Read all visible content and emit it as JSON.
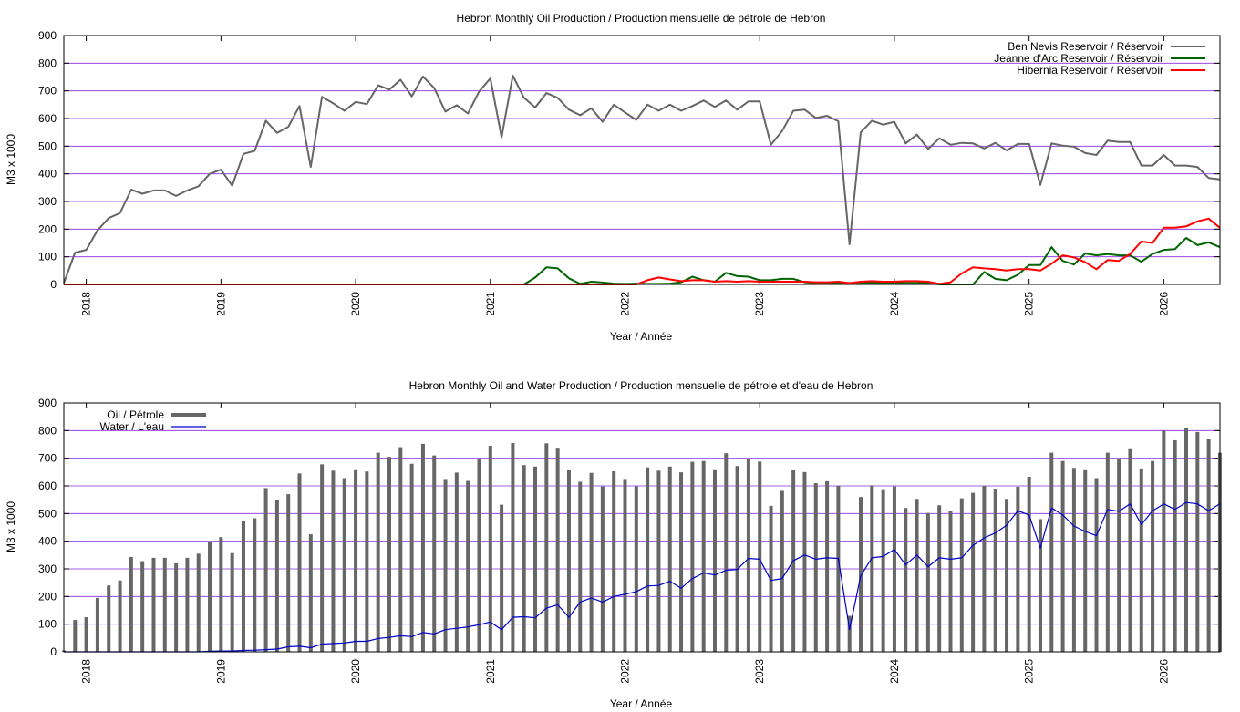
{
  "chart_data": [
    {
      "type": "line",
      "title": "Hebron Monthly Oil Production / Production mensuelle de pétrole de Hebron",
      "xlabel": "Year / Année",
      "ylabel": "M3 x 1000",
      "ylim": [
        0,
        900
      ],
      "yticks": [
        "0",
        "100",
        "200",
        "300",
        "400",
        "500",
        "600",
        "700",
        "800",
        "900"
      ],
      "xticks": [
        "2018",
        "2019",
        "2020",
        "2021",
        "2022",
        "2023",
        "2024",
        "2025",
        "2026"
      ],
      "grid": true,
      "legend_position": "top-right",
      "x_start": "2017-11",
      "x_step": "month",
      "series": [
        {
          "name": "Ben Nevis Reservoir / Réservoir",
          "color": "#666666",
          "values": [
            5,
            115,
            125,
            195,
            240,
            258,
            343,
            328,
            340,
            340,
            320,
            340,
            355,
            400,
            415,
            357,
            472,
            483,
            592,
            548,
            570,
            645,
            425,
            678,
            655,
            628,
            660,
            652,
            720,
            705,
            740,
            680,
            752,
            710,
            625,
            648,
            618,
            698,
            745,
            532,
            755,
            675,
            640,
            692,
            675,
            632,
            612,
            637,
            588,
            650,
            622,
            595,
            650,
            628,
            650,
            628,
            645,
            665,
            642,
            665,
            632,
            662,
            662,
            505,
            555,
            628,
            632,
            602,
            610,
            590,
            145,
            550,
            592,
            578,
            588,
            510,
            542,
            490,
            528,
            505,
            512,
            510,
            492,
            512,
            485,
            508,
            508,
            360,
            510,
            502,
            498,
            475,
            468,
            520,
            515,
            515,
            430,
            430,
            468,
            430,
            430,
            425,
            385,
            380
          ]
        },
        {
          "name": "Jeanne d'Arc Reservoir / Réservoir",
          "color": "#006400",
          "values": [
            0,
            0,
            0,
            0,
            0,
            0,
            0,
            0,
            0,
            0,
            0,
            0,
            0,
            0,
            0,
            0,
            0,
            0,
            0,
            0,
            0,
            0,
            0,
            0,
            0,
            0,
            0,
            0,
            0,
            0,
            0,
            0,
            0,
            0,
            0,
            0,
            0,
            0,
            0,
            0,
            0,
            0,
            25,
            62,
            58,
            22,
            2,
            10,
            7,
            3,
            2,
            3,
            2,
            2,
            3,
            8,
            28,
            15,
            10,
            42,
            30,
            28,
            15,
            15,
            20,
            20,
            8,
            5,
            5,
            5,
            5,
            5,
            5,
            5,
            5,
            5,
            5,
            5,
            0,
            0,
            0,
            0,
            45,
            20,
            15,
            35,
            70,
            70,
            135,
            85,
            72,
            112,
            105,
            110,
            105,
            105,
            82,
            110,
            125,
            128,
            168,
            142,
            152,
            135
          ]
        },
        {
          "name": "Hibernia Reservoir / Réservoir",
          "color": "#ff0000",
          "values": [
            0,
            0,
            0,
            0,
            0,
            0,
            0,
            0,
            0,
            0,
            0,
            0,
            0,
            0,
            0,
            0,
            0,
            0,
            0,
            0,
            0,
            0,
            0,
            0,
            0,
            0,
            0,
            0,
            0,
            0,
            0,
            0,
            0,
            0,
            0,
            0,
            0,
            0,
            0,
            0,
            0,
            0,
            0,
            0,
            0,
            0,
            0,
            0,
            0,
            0,
            0,
            0,
            15,
            25,
            18,
            12,
            15,
            15,
            10,
            12,
            10,
            12,
            10,
            10,
            10,
            10,
            10,
            8,
            8,
            10,
            5,
            10,
            12,
            10,
            10,
            12,
            12,
            10,
            2,
            8,
            40,
            62,
            58,
            55,
            50,
            55,
            55,
            50,
            75,
            105,
            98,
            80,
            55,
            88,
            85,
            110,
            155,
            150,
            205,
            205,
            210,
            228,
            238,
            205
          ]
        }
      ]
    },
    {
      "type": "bar",
      "title": "Hebron Monthly Oil and Water Production / Production mensuelle de pétrole et d'eau de Hebron",
      "xlabel": "Year / Année",
      "ylabel": "M3 x 1000",
      "ylim": [
        0,
        900
      ],
      "yticks": [
        "0",
        "100",
        "200",
        "300",
        "400",
        "500",
        "600",
        "700",
        "800",
        "900"
      ],
      "xticks": [
        "2018",
        "2019",
        "2020",
        "2021",
        "2022",
        "2023",
        "2024",
        "2025",
        "2026"
      ],
      "grid": true,
      "legend_position": "top-left",
      "x_start": "2017-11",
      "x_step": "month",
      "series": [
        {
          "name": "Oil / Pétrole",
          "kind": "bar",
          "color": "#666666",
          "values": [
            5,
            115,
            125,
            195,
            240,
            258,
            343,
            328,
            340,
            340,
            320,
            340,
            355,
            400,
            415,
            357,
            472,
            483,
            592,
            548,
            570,
            645,
            425,
            678,
            655,
            628,
            660,
            652,
            720,
            705,
            740,
            680,
            752,
            710,
            625,
            648,
            618,
            698,
            745,
            532,
            755,
            675,
            670,
            754,
            738,
            657,
            615,
            647,
            598,
            653,
            625,
            599,
            667,
            655,
            670,
            649,
            687,
            690,
            660,
            718,
            672,
            700,
            688,
            528,
            582,
            657,
            650,
            610,
            617,
            600,
            130,
            560,
            602,
            588,
            598,
            520,
            553,
            502,
            530,
            510,
            555,
            575,
            600,
            590,
            553,
            597,
            633,
            480,
            720,
            690,
            665,
            660,
            628,
            720,
            700,
            736,
            663,
            690,
            800,
            765,
            810,
            795,
            770,
            720
          ]
        },
        {
          "name": "Water / L'eau",
          "kind": "line",
          "color": "#0000cc",
          "values": [
            0,
            0,
            0,
            0,
            0,
            0,
            0,
            0,
            0,
            0,
            0,
            0,
            0,
            2,
            3,
            3,
            5,
            6,
            8,
            10,
            18,
            20,
            15,
            28,
            30,
            32,
            38,
            38,
            48,
            52,
            58,
            55,
            70,
            65,
            80,
            85,
            90,
            98,
            108,
            80,
            125,
            127,
            123,
            158,
            170,
            125,
            180,
            195,
            180,
            200,
            208,
            218,
            238,
            240,
            255,
            230,
            265,
            285,
            278,
            295,
            298,
            338,
            335,
            258,
            265,
            330,
            350,
            335,
            340,
            338,
            80,
            275,
            340,
            345,
            370,
            315,
            350,
            308,
            340,
            335,
            340,
            385,
            412,
            430,
            458,
            510,
            495,
            375,
            520,
            495,
            455,
            435,
            420,
            515,
            508,
            535,
            460,
            510,
            535,
            515,
            540,
            535,
            510,
            535
          ]
        }
      ]
    }
  ]
}
